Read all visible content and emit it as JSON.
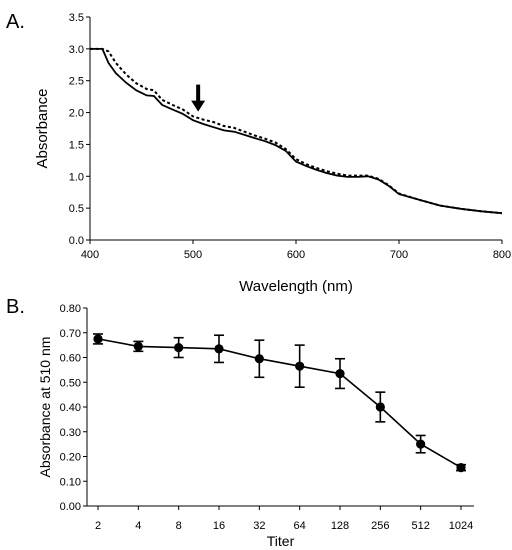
{
  "chart_data": [
    {
      "type": "line",
      "panel_label": "A.",
      "xlabel": "Wavelength (nm)",
      "ylabel": "Absorbance",
      "xlim": [
        400,
        800
      ],
      "ylim": [
        0,
        3.5
      ],
      "x_ticks": [
        "400",
        "500",
        "600",
        "700",
        "800"
      ],
      "y_ticks": [
        "0.0",
        "0.5",
        "1.0",
        "1.5",
        "2.0",
        "2.5",
        "3.0",
        "3.5"
      ],
      "grid": false,
      "arrow_at": {
        "x": 505,
        "y": 2.0
      },
      "series": [
        {
          "style": "solid",
          "x": [
            400,
            412,
            418,
            425,
            435,
            445,
            455,
            462,
            470,
            480,
            490,
            500,
            510,
            520,
            530,
            540,
            550,
            560,
            570,
            580,
            590,
            600,
            610,
            620,
            630,
            640,
            650,
            660,
            670,
            680,
            690,
            700,
            720,
            740,
            760,
            780,
            800
          ],
          "y": [
            3.0,
            3.0,
            2.78,
            2.62,
            2.47,
            2.35,
            2.27,
            2.26,
            2.12,
            2.05,
            1.98,
            1.88,
            1.82,
            1.77,
            1.72,
            1.7,
            1.65,
            1.6,
            1.55,
            1.49,
            1.4,
            1.23,
            1.16,
            1.1,
            1.05,
            1.01,
            0.99,
            0.99,
            1.0,
            0.95,
            0.85,
            0.72,
            0.63,
            0.54,
            0.49,
            0.45,
            0.42
          ]
        },
        {
          "style": "dashed",
          "x": [
            400,
            412,
            418,
            425,
            435,
            445,
            455,
            462,
            470,
            480,
            490,
            500,
            510,
            520,
            530,
            540,
            550,
            560,
            570,
            580,
            590,
            600,
            610,
            620,
            630,
            640,
            650,
            660,
            670,
            680,
            690,
            700,
            720,
            740,
            760,
            780,
            800
          ],
          "y": [
            3.0,
            3.0,
            2.96,
            2.78,
            2.6,
            2.46,
            2.37,
            2.35,
            2.2,
            2.12,
            2.05,
            1.94,
            1.89,
            1.85,
            1.79,
            1.76,
            1.7,
            1.64,
            1.59,
            1.53,
            1.43,
            1.27,
            1.19,
            1.13,
            1.08,
            1.04,
            1.01,
            1.01,
            1.01,
            0.96,
            0.86,
            0.73,
            0.63,
            0.54,
            0.49,
            0.45,
            0.42
          ]
        }
      ]
    },
    {
      "type": "line",
      "panel_label": "B.",
      "xlabel": "Titer",
      "ylabel": "Absorbance at 510 nm",
      "ylim": [
        0,
        0.8
      ],
      "categories": [
        "2",
        "4",
        "8",
        "16",
        "32",
        "64",
        "128",
        "256",
        "512",
        "1024"
      ],
      "y_ticks": [
        "0.00",
        "0.10",
        "0.20",
        "0.30",
        "0.40",
        "0.50",
        "0.60",
        "0.70",
        "0.80"
      ],
      "grid": false,
      "series": [
        {
          "values": [
            0.675,
            0.645,
            0.64,
            0.635,
            0.595,
            0.565,
            0.535,
            0.4,
            0.25,
            0.155
          ],
          "error": [
            0.02,
            0.02,
            0.04,
            0.055,
            0.075,
            0.085,
            0.06,
            0.06,
            0.035,
            0.012
          ]
        }
      ]
    }
  ]
}
